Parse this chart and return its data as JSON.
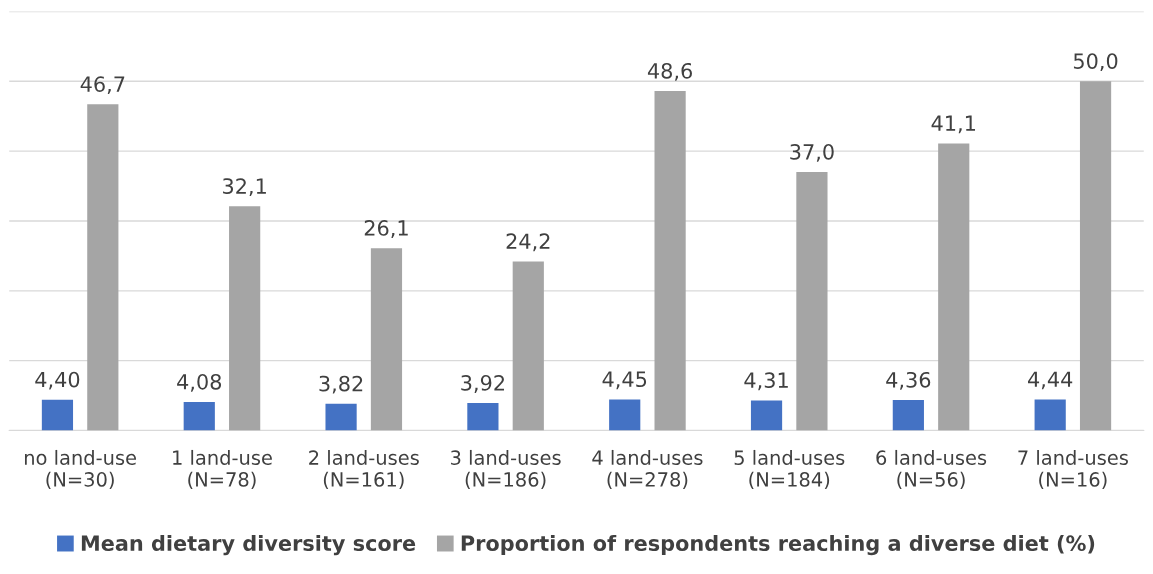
{
  "chart_data": {
    "type": "bar",
    "categories": [
      "no land-use\n(N=30)",
      "1 land-use\n(N=78)",
      "2 land-uses\n(N=161)",
      "3 land-uses\n(N=186)",
      "4 land-uses\n(N=278)",
      "5 land-uses\n(N=184)",
      "6 land-uses\n(N=56)",
      "7 land-uses\n(N=16)"
    ],
    "series": [
      {
        "name": "Mean dietary diversity score",
        "color": "#4472c4",
        "values": [
          4.4,
          4.08,
          3.82,
          3.92,
          4.45,
          4.31,
          4.36,
          4.44
        ],
        "value_labels": [
          "4,40",
          "4,08",
          "3,82",
          "3,92",
          "4,45",
          "4,31",
          "4,36",
          "4,44"
        ]
      },
      {
        "name": "Proportion of respondents reaching a diverse diet (%)",
        "color": "#a5a5a5",
        "values": [
          46.7,
          32.1,
          26.1,
          24.2,
          48.6,
          37.0,
          41.1,
          50.0
        ],
        "value_labels": [
          "46,7",
          "32,1",
          "26,1",
          "24,2",
          "48,6",
          "37,0",
          "41,1",
          "50,0"
        ]
      }
    ],
    "ylim": [
      0,
      60
    ],
    "yticks": [
      0,
      10,
      20,
      30,
      40,
      50,
      60
    ],
    "grid": "y",
    "tick_labels": "x",
    "legend": "bottom"
  }
}
